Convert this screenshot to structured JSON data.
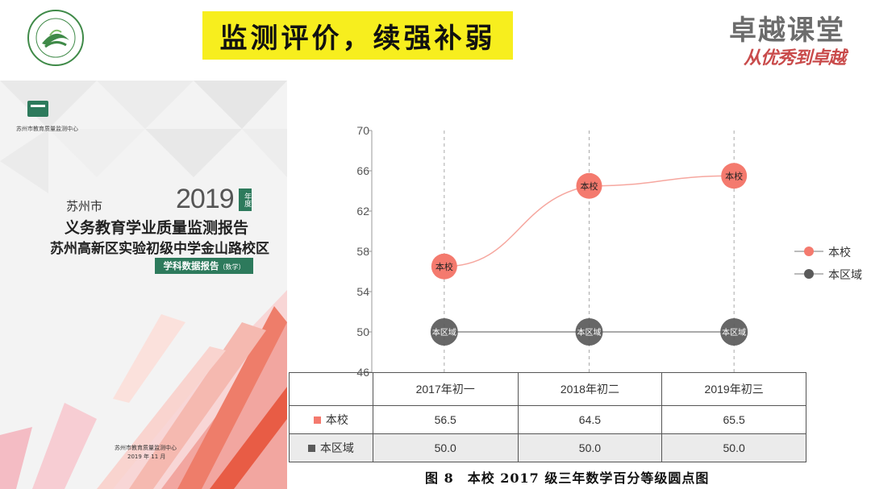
{
  "header": {
    "title": "监测评价，续强补弱",
    "brand_main": "卓越课堂",
    "brand_sub": "从优秀到卓越"
  },
  "cover": {
    "org": "苏州市教育质量监测中心",
    "year": "2019",
    "year_tag": "年度",
    "city": "苏州市",
    "line1": "义务教育学业质量监测报告",
    "line2": "苏州高新区实验初级中学金山路校区",
    "badge": "学科数据报告",
    "badge_sub": "（数学）",
    "footer_org": "苏州市教育质量监测中心",
    "footer_date": "2019 年 11 月"
  },
  "colors": {
    "school": "#f47a6e",
    "region": "#5a5a5a",
    "accent_green": "#2d7a5c",
    "title_bg": "#f7ee1e"
  },
  "chart_data": {
    "type": "line",
    "categories": [
      "2017年初一",
      "2018年初二",
      "2019年初三"
    ],
    "series": [
      {
        "name": "本校",
        "values": [
          56.5,
          64.5,
          65.5
        ],
        "point_label": "本校",
        "color": "#f47a6e"
      },
      {
        "name": "本区域",
        "values": [
          50.0,
          50.0,
          50.0
        ],
        "point_label": "本区域",
        "color": "#5a5a5a"
      }
    ],
    "ylim": [
      46,
      70
    ],
    "yticks": [
      46,
      50,
      54,
      58,
      62,
      66,
      70
    ],
    "legend_position": "right",
    "grid": "vertical dashed",
    "caption": "图 8　本校 2017 级三年数学百分等级圆点图"
  },
  "table": {
    "headers": [
      "",
      "2017年初一",
      "2018年初二",
      "2019年初三"
    ],
    "rows": [
      {
        "label": "本校",
        "values": [
          "56.5",
          "64.5",
          "65.5"
        ]
      },
      {
        "label": "本区域",
        "values": [
          "50.0",
          "50.0",
          "50.0"
        ]
      }
    ]
  }
}
